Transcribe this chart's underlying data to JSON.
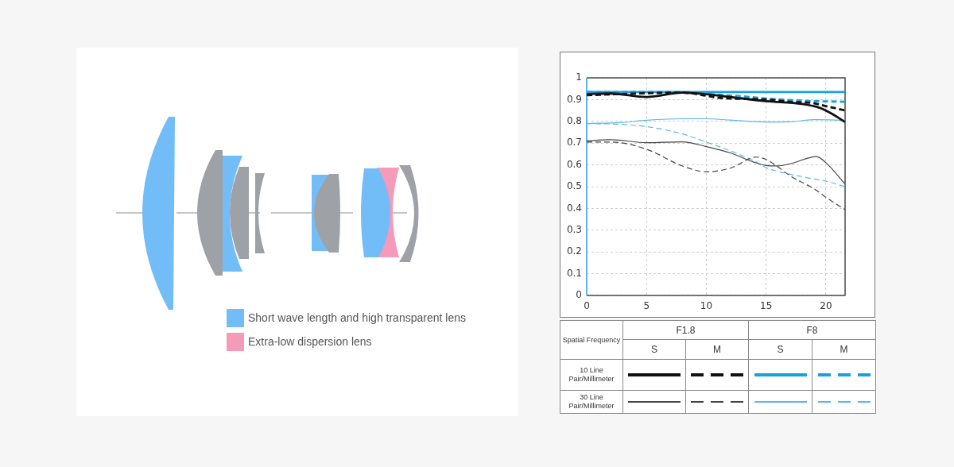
{
  "chart_data": [
    {
      "type": "other",
      "annotations": [
        "Short wave length and high transparent lens",
        "Extra-low dispersion lens"
      ]
    },
    {
      "type": "line",
      "xlim": [
        0,
        21.6
      ],
      "xticks": [
        0,
        5,
        10,
        15,
        20
      ],
      "ylim": [
        0,
        1
      ],
      "yticks": [
        0,
        0.1,
        0.2,
        0.3,
        0.4,
        0.5,
        0.6,
        0.7,
        0.8,
        0.9,
        1
      ],
      "grid": true,
      "marker": "none",
      "annotations": [
        "Spatial Frequency",
        "F1.8",
        "F8",
        "S",
        "M",
        "S",
        "M",
        "10 Line Pair/Millimeter",
        "30 Line Pair/Millimeter"
      ],
      "series": [
        {
          "color": "#111111",
          "line_style": "solid",
          "x": [
            0,
            2,
            5,
            8,
            10,
            12,
            15,
            18,
            19.5,
            20.5,
            21.6
          ],
          "values": [
            0.925,
            0.928,
            0.912,
            0.932,
            0.925,
            0.912,
            0.893,
            0.88,
            0.862,
            0.835,
            0.797
          ]
        },
        {
          "color": "#111111",
          "line_style": "dashed",
          "x": [
            0,
            3,
            8,
            10,
            11,
            12,
            15,
            17,
            19,
            20,
            21.6
          ],
          "values": [
            0.92,
            0.926,
            0.932,
            0.918,
            0.908,
            0.905,
            0.9,
            0.89,
            0.883,
            0.87,
            0.85
          ]
        },
        {
          "color": "#1a9fe0",
          "line_style": "solid",
          "x": [
            0,
            5,
            10,
            15,
            21.6
          ],
          "values": [
            0.935,
            0.935,
            0.935,
            0.935,
            0.935
          ]
        },
        {
          "color": "#1a9fe0",
          "line_style": "dashed",
          "x": [
            0,
            5,
            8,
            10,
            13,
            15,
            18,
            21.6
          ],
          "values": [
            0.935,
            0.935,
            0.933,
            0.925,
            0.915,
            0.905,
            0.895,
            0.89
          ]
        },
        {
          "color": "#444444",
          "line_style": "solid",
          "x": [
            0,
            2,
            5,
            8,
            10,
            12,
            14,
            15,
            16,
            17,
            19.2,
            20,
            21.6
          ],
          "values": [
            0.71,
            0.716,
            0.702,
            0.706,
            0.684,
            0.655,
            0.612,
            0.597,
            0.595,
            0.605,
            0.638,
            0.61,
            0.512
          ]
        },
        {
          "color": "#444444",
          "line_style": "dashed",
          "x": [
            0,
            2,
            5,
            8,
            10,
            12,
            14.2,
            15,
            16,
            17,
            19,
            20,
            21.6
          ],
          "values": [
            0.705,
            0.705,
            0.672,
            0.595,
            0.568,
            0.585,
            0.636,
            0.625,
            0.59,
            0.55,
            0.49,
            0.451,
            0.394
          ]
        },
        {
          "color": "#5cb8ea",
          "line_style": "solid",
          "x": [
            0,
            3,
            5,
            8,
            10,
            12,
            15,
            17,
            19,
            21.6
          ],
          "values": [
            0.79,
            0.795,
            0.805,
            0.812,
            0.812,
            0.806,
            0.797,
            0.798,
            0.808,
            0.805
          ]
        },
        {
          "color": "#5cb8ea",
          "line_style": "dashed",
          "x": [
            0,
            3,
            5,
            8,
            10,
            12,
            14,
            15,
            16,
            17,
            19,
            20,
            21.6
          ],
          "values": [
            0.79,
            0.786,
            0.776,
            0.742,
            0.705,
            0.665,
            0.618,
            0.587,
            0.57,
            0.557,
            0.535,
            0.525,
            0.5
          ]
        }
      ]
    }
  ]
}
